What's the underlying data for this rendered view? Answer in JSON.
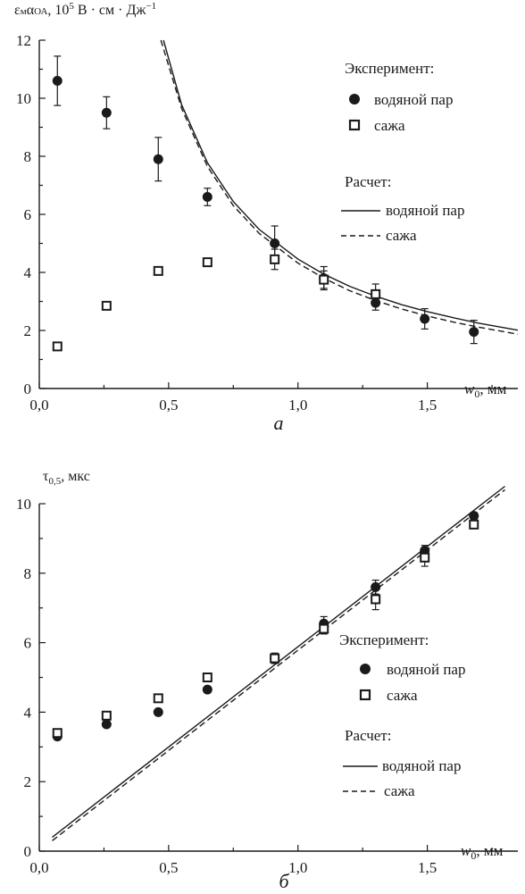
{
  "colors": {
    "ink": "#1a1a1a",
    "background": "#ffffff"
  },
  "chart_data": [
    {
      "type": "scatter",
      "panel_label": "а",
      "ylabel_parts": {
        "main": "ε",
        "s1": "м",
        "main2": "α",
        "s2": "ОА",
        "rest": ", 10",
        "sup": "5",
        "unit": " В · см · Дж",
        "sup2": "−1"
      },
      "xlabel_parts": {
        "var": "w",
        "sub": "0",
        "unit": ", мм"
      },
      "xlim": [
        0,
        1.85
      ],
      "ylim": [
        0,
        12
      ],
      "x_ticks": [
        0,
        0.5,
        1.0,
        1.5
      ],
      "x_tick_labels": [
        "0,0",
        "0,5",
        "1,0",
        "1,5"
      ],
      "y_ticks": [
        0,
        2,
        4,
        6,
        8,
        10,
        12
      ],
      "y_tick_labels": [
        "0",
        "2",
        "4",
        "6",
        "8",
        "10",
        "12"
      ],
      "legend": {
        "exp_header": "Эксперимент:",
        "calc_header": "Расчет:",
        "water": "водяной пар",
        "soot": "сажа",
        "placement": "right"
      },
      "series": [
        {
          "name": "водяной пар",
          "kind": "exp",
          "marker": "filled-circle",
          "x": [
            0.07,
            0.26,
            0.46,
            0.65,
            0.91,
            1.1,
            1.3,
            1.49,
            1.68
          ],
          "y": [
            10.6,
            9.5,
            7.9,
            6.6,
            5.0,
            3.8,
            2.95,
            2.4,
            1.95
          ],
          "err": [
            0.85,
            0.55,
            0.75,
            0.3,
            0.6,
            0.4,
            0.25,
            0.35,
            0.4
          ]
        },
        {
          "name": "сажа",
          "kind": "exp",
          "marker": "open-square",
          "x": [
            0.07,
            0.26,
            0.46,
            0.65,
            0.91,
            1.1,
            1.3
          ],
          "y": [
            1.45,
            2.85,
            4.05,
            4.35,
            4.45,
            3.75,
            3.25
          ],
          "err": [
            0.1,
            0.1,
            0,
            0,
            0.35,
            0.3,
            0.35
          ]
        },
        {
          "name": "водяной пар",
          "kind": "calc",
          "style": "solid",
          "x": [
            0.48,
            0.55,
            0.65,
            0.75,
            0.85,
            1.0,
            1.1,
            1.2,
            1.3,
            1.4,
            1.5,
            1.6,
            1.7,
            1.85
          ],
          "y": [
            12.0,
            9.78,
            7.78,
            6.44,
            5.48,
            4.46,
            3.94,
            3.52,
            3.18,
            2.89,
            2.65,
            2.44,
            2.25,
            2.01
          ]
        },
        {
          "name": "сажа",
          "kind": "calc",
          "style": "dashed",
          "x": [
            0.47,
            0.55,
            0.65,
            0.75,
            0.85,
            1.0,
            1.1,
            1.2,
            1.3,
            1.4,
            1.5,
            1.6,
            1.7,
            1.85
          ],
          "y": [
            12.0,
            9.65,
            7.65,
            6.3,
            5.34,
            4.32,
            3.8,
            3.37,
            3.03,
            2.74,
            2.5,
            2.29,
            2.11,
            1.87
          ]
        }
      ]
    },
    {
      "type": "scatter",
      "panel_label": "б",
      "ylabel_parts": {
        "main": "τ",
        "sub": "0,5",
        "unit": ", мкс"
      },
      "xlabel_parts": {
        "var": "w",
        "sub": "0",
        "unit": ", мм"
      },
      "xlim": [
        0,
        1.85
      ],
      "ylim": [
        0,
        10
      ],
      "x_ticks": [
        0,
        0.5,
        1.0,
        1.5
      ],
      "x_tick_labels": [
        "0,0",
        "0,5",
        "1,0",
        "1,5"
      ],
      "y_ticks": [
        0,
        2,
        4,
        6,
        8,
        10
      ],
      "y_tick_labels": [
        "0",
        "2",
        "4",
        "6",
        "8",
        "10"
      ],
      "legend": {
        "exp_header": "Эксперимент:",
        "calc_header": "Расчет:",
        "water": "водяной пар",
        "soot": "сажа",
        "placement": "right"
      },
      "series": [
        {
          "name": "водяной пар",
          "kind": "exp",
          "marker": "filled-circle",
          "x": [
            0.07,
            0.26,
            0.46,
            0.65,
            0.91,
            1.1,
            1.3,
            1.49,
            1.68
          ],
          "y": [
            3.3,
            3.65,
            4.0,
            4.65,
            5.55,
            6.55,
            7.6,
            8.65,
            9.65
          ],
          "err": [
            0,
            0,
            0,
            0,
            0.15,
            0.2,
            0.2,
            0.15,
            0.1
          ]
        },
        {
          "name": "сажа",
          "kind": "exp",
          "marker": "open-square",
          "x": [
            0.07,
            0.26,
            0.46,
            0.65,
            0.91,
            1.1,
            1.3,
            1.49,
            1.68
          ],
          "y": [
            3.4,
            3.9,
            4.4,
            5.0,
            5.55,
            6.4,
            7.25,
            8.45,
            9.4
          ],
          "err": [
            0,
            0,
            0,
            0,
            0,
            0.15,
            0.3,
            0.25,
            0.1
          ]
        },
        {
          "name": "водяной пар",
          "kind": "calc",
          "style": "solid",
          "x": [
            0.05,
            1.8
          ],
          "y": [
            0.4,
            10.5
          ]
        },
        {
          "name": "сажа",
          "kind": "calc",
          "style": "dashed",
          "x": [
            0.05,
            1.8
          ],
          "y": [
            0.3,
            10.4
          ]
        }
      ]
    }
  ]
}
